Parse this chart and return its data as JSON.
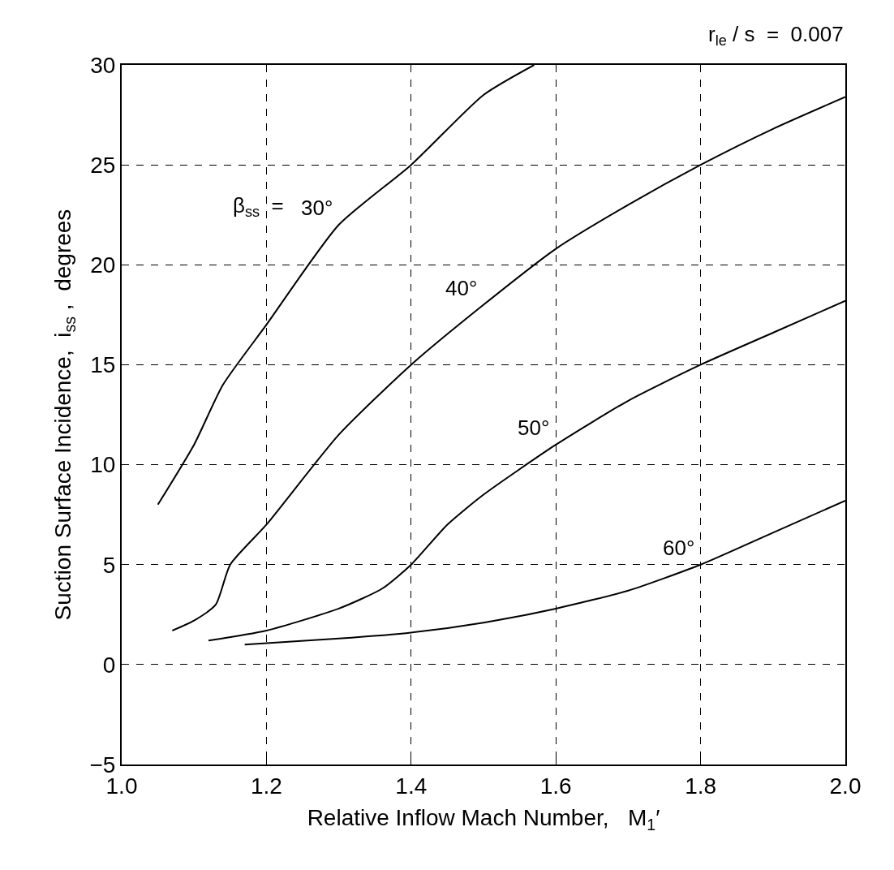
{
  "chart_data": {
    "type": "line",
    "xlabel": "Relative Inflow Mach Number,   M$_{1}$′",
    "ylabel": "Suction Surface Incidence,  i$_{ss}$ ,  degrees",
    "xlim": [
      1.0,
      2.0
    ],
    "xticks": [
      {
        "value": 1.0,
        "label": "1.0"
      },
      1.2,
      1.4,
      1.6,
      1.8,
      {
        "value": 2.0,
        "label": "2.0"
      }
    ],
    "ylim": [
      -5,
      30
    ],
    "yticks": [
      -5,
      0,
      5,
      10,
      15,
      20,
      25,
      30
    ],
    "grid": true,
    "marker": "none",
    "line_style": "solid",
    "series": [
      {
        "name": "30°",
        "color": "#000000",
        "x": [
          1.05,
          1.1,
          1.14,
          1.2,
          1.3,
          1.4,
          1.5,
          1.57
        ],
        "values": [
          8,
          11,
          14,
          17,
          22,
          25,
          28.5,
          30
        ]
      },
      {
        "name": "40°",
        "color": "#000000",
        "x": [
          1.07,
          1.1,
          1.13,
          1.15,
          1.2,
          1.3,
          1.4,
          1.5,
          1.6,
          1.7,
          1.8,
          1.9,
          2.0
        ],
        "values": [
          1.7,
          2.2,
          3,
          5,
          7,
          11.5,
          15,
          18,
          20.8,
          23,
          25,
          26.8,
          28.4
        ]
      },
      {
        "name": "50°",
        "color": "#000000",
        "x": [
          1.12,
          1.2,
          1.3,
          1.36,
          1.4,
          1.45,
          1.5,
          1.6,
          1.7,
          1.8,
          1.9,
          2.0
        ],
        "values": [
          1.2,
          1.7,
          2.8,
          3.8,
          5,
          7,
          8.5,
          11,
          13.2,
          15,
          16.6,
          18.2
        ]
      },
      {
        "name": "60°",
        "color": "#000000",
        "x": [
          1.17,
          1.3,
          1.4,
          1.5,
          1.6,
          1.7,
          1.8,
          1.9,
          2.0
        ],
        "values": [
          1.0,
          1.3,
          1.6,
          2.1,
          2.8,
          3.7,
          5,
          6.6,
          8.2
        ]
      }
    ],
    "annotations": [
      "β$_{ss}$  =",
      "r$_{le}$ / s  =  0.007"
    ]
  }
}
